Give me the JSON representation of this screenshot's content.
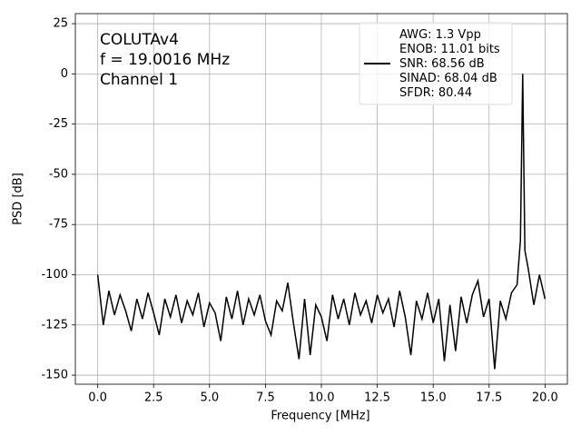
{
  "chart_data": {
    "type": "line",
    "annotations": [
      "COLUTAv4",
      "f = 19.0016 MHz",
      "Channel 1"
    ],
    "xlabel": "Frequency [MHz]",
    "ylabel": "PSD [dB]",
    "x": [
      0,
      0.25,
      0.5,
      0.75,
      1,
      1.25,
      1.5,
      1.75,
      2,
      2.25,
      2.5,
      2.75,
      3,
      3.25,
      3.5,
      3.75,
      4,
      4.25,
      4.5,
      4.75,
      5,
      5.25,
      5.5,
      5.75,
      6,
      6.25,
      6.5,
      6.75,
      7,
      7.25,
      7.5,
      7.75,
      8,
      8.25,
      8.5,
      8.75,
      9,
      9.25,
      9.5,
      9.75,
      10,
      10.25,
      10.5,
      10.75,
      11,
      11.25,
      11.5,
      11.75,
      12,
      12.25,
      12.5,
      12.75,
      13,
      13.25,
      13.5,
      13.75,
      14,
      14.25,
      14.5,
      14.75,
      15,
      15.25,
      15.5,
      15.75,
      16,
      16.25,
      16.5,
      16.75,
      17,
      17.25,
      17.5,
      17.75,
      18,
      18.25,
      18.5,
      18.75,
      18.9,
      19.0016,
      19.1,
      19.25,
      19.5,
      19.75,
      20
    ],
    "series": [
      {
        "name": "AWG: 1.3 Vpp\nENOB: 11.01 bits\nSNR: 68.56 dB\nSINAD: 68.04 dB\nSFDR: 80.44",
        "color": "#000000",
        "values": [
          -100,
          -125,
          -108,
          -120,
          -110,
          -118,
          -128,
          -112,
          -122,
          -109,
          -119,
          -130,
          -112,
          -121,
          -110,
          -124,
          -113,
          -120,
          -109,
          -126,
          -114,
          -119,
          -133,
          -111,
          -122,
          -108,
          -125,
          -112,
          -120,
          -110,
          -123,
          -130,
          -113,
          -118,
          -104,
          -124,
          -142,
          -112,
          -140,
          -115,
          -121,
          -133,
          -110,
          -122,
          -112,
          -125,
          -109,
          -120,
          -113,
          -124,
          -110,
          -119,
          -112,
          -126,
          -108,
          -121,
          -140,
          -113,
          -122,
          -109,
          -124,
          -112,
          -143,
          -115,
          -138,
          -111,
          -124,
          -110,
          -103,
          -121,
          -112,
          -147,
          -113,
          -122,
          -109,
          -105,
          -83,
          0,
          -88,
          -97,
          -115,
          -100,
          -112
        ]
      }
    ],
    "xlim": [
      -1,
      21
    ],
    "ylim": [
      -154.5,
      30
    ],
    "xticks": [
      {
        "value": 0,
        "label": "0.0"
      },
      {
        "value": 2.5,
        "label": "2.5"
      },
      {
        "value": 5,
        "label": "5.0"
      },
      {
        "value": 7.5,
        "label": "7.5"
      },
      {
        "value": 10,
        "label": "10.0"
      },
      {
        "value": 12.5,
        "label": "12.5"
      },
      {
        "value": 15,
        "label": "15.0"
      },
      {
        "value": 17.5,
        "label": "17.5"
      },
      {
        "value": 20,
        "label": "20.0"
      }
    ],
    "yticks": [
      25,
      0,
      -25,
      -50,
      -75,
      -100,
      -125,
      -150
    ],
    "grid": true,
    "legend": "upper right"
  }
}
